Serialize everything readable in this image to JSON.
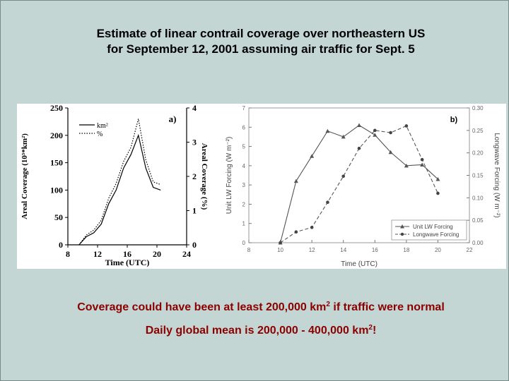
{
  "title": {
    "line1": "Estimate of linear contrail coverage over northeastern US",
    "line2": "for September 12, 2001 assuming air traffic for Sept. 5"
  },
  "captions": {
    "line1_pre": "Coverage could have been at least 200,000 km",
    "line1_sup": "2",
    "line1_post": " if traffic were normal",
    "line2_pre": "Daily global mean is 200,000 - 400,000 km",
    "line2_sup": "2",
    "line2_post": "!"
  },
  "chart_data": [
    {
      "type": "line",
      "panel_label": "a)",
      "xlabel": "Time (UTC)",
      "ylabel_left": "Areal Coverage (10³*km²)",
      "ylabel_right": "Areal Coverage (%)",
      "xlim": [
        8,
        24
      ],
      "ylim_left": [
        0,
        250
      ],
      "ylim_right": [
        0,
        4
      ],
      "x_ticks": [
        8,
        12,
        16,
        20,
        24
      ],
      "y_ticks_left": [
        0,
        50,
        100,
        150,
        200,
        250
      ],
      "y_ticks_right": [
        0,
        1,
        2,
        3,
        4
      ],
      "legend": [
        "km²",
        "%"
      ],
      "series": [
        {
          "name": "km²",
          "style": "solid",
          "axis": "left",
          "x": [
            9.5,
            10.5,
            11.5,
            12.5,
            13.5,
            14.5,
            15.5,
            16.5,
            17.5,
            18.5,
            19.5,
            20.5
          ],
          "values": [
            0,
            15,
            22,
            38,
            75,
            100,
            140,
            165,
            200,
            140,
            105,
            100
          ]
        },
        {
          "name": "%",
          "style": "dotted",
          "axis": "left",
          "x": [
            9.5,
            10.5,
            11.5,
            12.5,
            13.5,
            14.5,
            15.5,
            16.5,
            17.5,
            18.5,
            19.5,
            20.5
          ],
          "values": [
            0,
            18,
            27,
            45,
            85,
            112,
            152,
            178,
            230,
            155,
            115,
            110
          ]
        }
      ]
    },
    {
      "type": "line",
      "panel_label": "b)",
      "xlabel": "Time (UTC)",
      "ylabel_left": "Unit LW Forcing (W m⁻²)",
      "ylabel_right": "Longwave Forcing (W m⁻²)",
      "xlim": [
        8,
        22
      ],
      "ylim_left": [
        0,
        7
      ],
      "ylim_right": [
        0,
        0.3
      ],
      "x_ticks": [
        8,
        10,
        12,
        14,
        16,
        18,
        20,
        22
      ],
      "y_ticks_left": [
        0,
        1,
        2,
        3,
        4,
        5,
        6,
        7
      ],
      "y_ticks_right": [
        "0.00",
        "0.05",
        "0.10",
        "0.15",
        "0.20",
        "0.25",
        "0.30"
      ],
      "legend": [
        "Unit LW Forcing",
        "Longwave Forcing"
      ],
      "legend_placement": "bottom-right",
      "series": [
        {
          "name": "Unit LW Forcing",
          "style": "solid",
          "marker": "triangle",
          "axis": "left",
          "x": [
            10,
            11,
            12,
            13,
            14,
            15,
            16,
            17,
            18,
            19,
            20
          ],
          "values": [
            0,
            3.2,
            4.5,
            5.8,
            5.5,
            6.1,
            5.6,
            4.7,
            4.0,
            4.05,
            3.3
          ]
        },
        {
          "name": "Longwave Forcing",
          "style": "dashed",
          "marker": "circle",
          "axis": "right",
          "x": [
            10,
            11,
            12,
            13,
            14,
            15,
            16,
            17,
            18,
            19,
            20
          ],
          "values": [
            0.0,
            0.024,
            0.034,
            0.09,
            0.148,
            0.21,
            0.25,
            0.245,
            0.26,
            0.185,
            0.11
          ]
        }
      ]
    }
  ]
}
